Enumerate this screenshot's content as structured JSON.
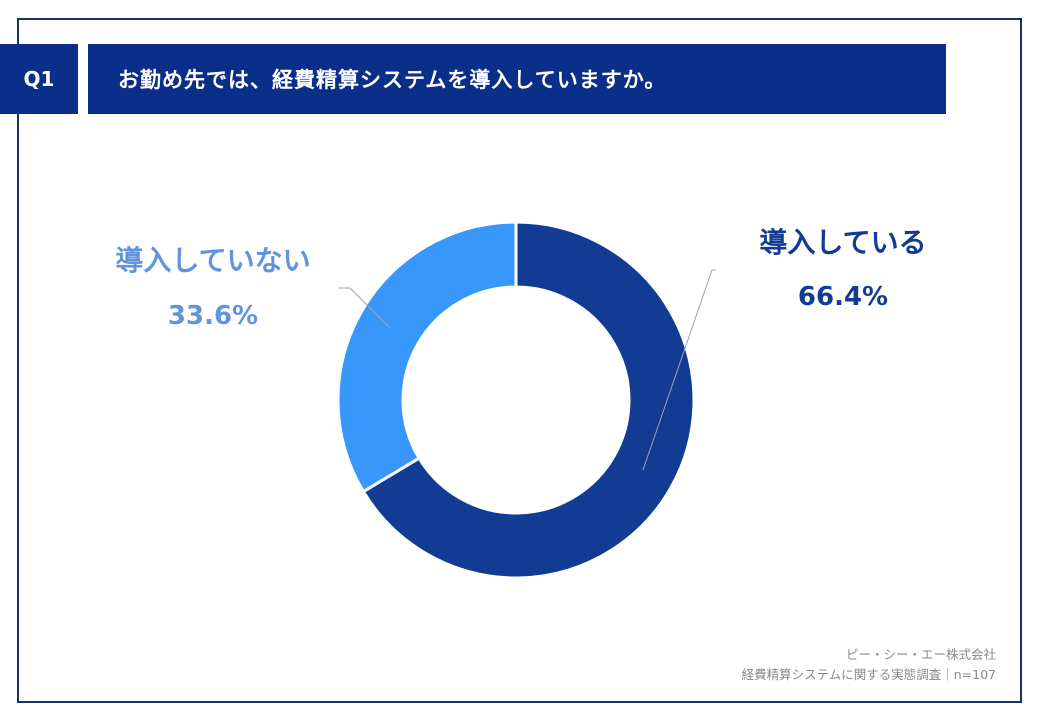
{
  "header": {
    "question_number": "Q1",
    "question_text": "お勤め先では、経費精算システムを導入していますか。"
  },
  "chart_data": {
    "type": "pie",
    "variant": "donut",
    "start_angle": "top",
    "direction": "clockwise",
    "slices": [
      {
        "label": "導入している",
        "value": 66.4,
        "value_label": "66.4%",
        "color": "#123c94",
        "label_color": "#123c94"
      },
      {
        "label": "導入していない",
        "value": 33.6,
        "value_label": "33.6%",
        "color": "#3897fb",
        "label_color": "#5e95de"
      }
    ]
  },
  "footer": {
    "company": "ピー・シー・エー株式会社",
    "survey": "経費精算システムに関する実態調査｜n=107"
  }
}
